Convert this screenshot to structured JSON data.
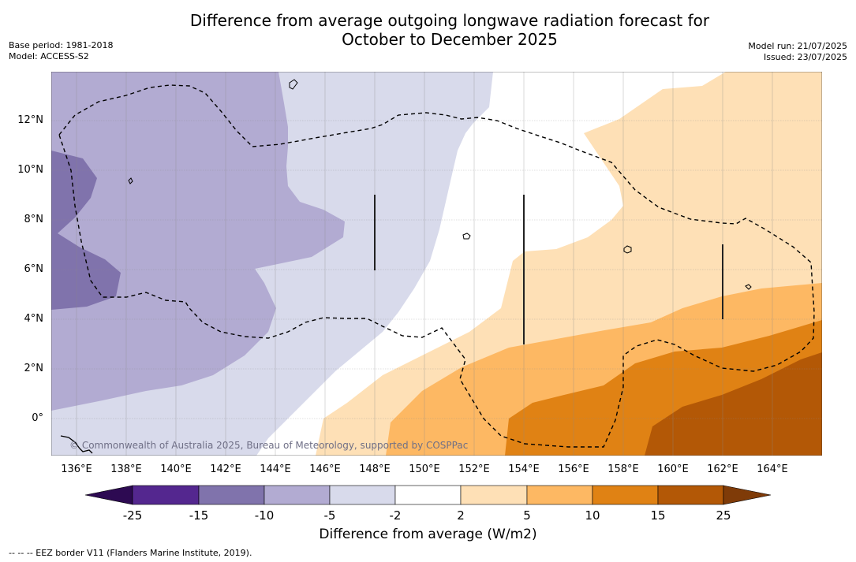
{
  "title_line1": "Difference from average outgoing longwave radiation forecast for",
  "title_line2": "October to December 2025",
  "base_period": "Base period: 1981-2018",
  "model": "Model: ACCESS-S2",
  "model_run": "Model run: 21/07/2025",
  "issued": "Issued: 23/07/2025",
  "copyright": "© Commonwealth of Australia 2025, Bureau of Meteorology, supported by COSPPac",
  "map": {
    "lat_labels": [
      "12°N",
      "10°N",
      "8°N",
      "6°N",
      "4°N",
      "2°N",
      "0°"
    ],
    "lon_labels": [
      "136°E",
      "138°E",
      "140°E",
      "142°E",
      "144°E",
      "146°E",
      "148°E",
      "150°E",
      "152°E",
      "154°E",
      "156°E",
      "158°E",
      "160°E",
      "162°E",
      "164°E"
    ]
  },
  "colorbar": {
    "title": "Difference from average (W/m2)",
    "ticks": [
      "-25",
      "-15",
      "-10",
      "-5",
      "-2",
      "2",
      "5",
      "10",
      "15",
      "25"
    ],
    "colors": {
      "below_-25": "#2d0a52",
      "-25_-15": "#54278f",
      "-15_-10": "#8073ac",
      "-10_-5": "#b2abd2",
      "-5_-2": "#d8daeb",
      "-2_2": "#ffffff",
      "2_5": "#fee0b6",
      "5_10": "#fdb863",
      "10_15": "#e08214",
      "15_25": "#b35806",
      "above_25": "#7f3b08"
    }
  },
  "footnote": "--  --  -- EEZ border V11 (Flanders Marine Institute, 2019)."
}
